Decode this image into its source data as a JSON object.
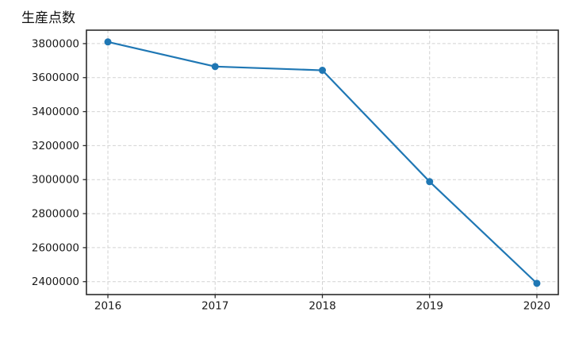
{
  "figure": {
    "background": "#ffffff"
  },
  "chart_data": {
    "type": "line",
    "title": "生産点数",
    "xlabel": "",
    "ylabel": "",
    "x": [
      2016,
      2017,
      2018,
      2019,
      2020
    ],
    "series": [
      {
        "name": "生産点数",
        "values": [
          3810000,
          3665000,
          3643000,
          2988000,
          2390000
        ]
      }
    ],
    "xticks": [
      2016,
      2017,
      2018,
      2019,
      2020
    ],
    "yticks": [
      2400000,
      2600000,
      2800000,
      3000000,
      3200000,
      3400000,
      3600000,
      3800000
    ],
    "xlim": [
      2015.8,
      2020.2
    ],
    "ylim": [
      2324000,
      3879000
    ],
    "grid": true,
    "grid_style": "dashed",
    "legend_position": "none",
    "line_color": "#1f77b4",
    "marker": "circle",
    "marker_color": "#1f77b4",
    "grid_color": "#d2d2d2",
    "axis_color": "#2b2b2b",
    "text_color": "#1a1a1a"
  }
}
